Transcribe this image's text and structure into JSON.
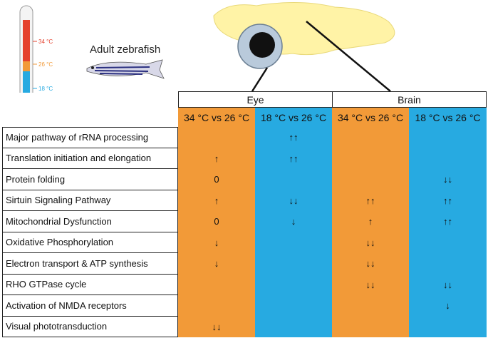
{
  "figure": {
    "caption": "Adult zebrafish",
    "temperatures": [
      "34 °C",
      "26 °C",
      "18 °C"
    ],
    "table": {
      "groups": [
        "Eye",
        "Brain"
      ],
      "columns": [
        "34 °C vs 26 °C",
        "18 °C vs 26 °C",
        "34 °C vs 26 °C",
        "18 °C vs 26 °C"
      ],
      "rows": [
        {
          "label": "Major pathway of rRNA processing",
          "cells": [
            null,
            "↑↑",
            null,
            null
          ]
        },
        {
          "label": "Translation initiation and elongation",
          "cells": [
            "↑",
            "↑↑",
            null,
            null
          ]
        },
        {
          "label": "Protein folding",
          "cells": [
            "0",
            null,
            null,
            "↓↓"
          ]
        },
        {
          "label": "Sirtuin Signaling Pathway",
          "cells": [
            "↑",
            "↓↓",
            "↑↑",
            "↑↑"
          ]
        },
        {
          "label": "Mitochondrial Dysfunction",
          "cells": [
            "0",
            "↓",
            "↑",
            "↑↑"
          ]
        },
        {
          "label": "Oxidative Phosphorylation",
          "cells": [
            "↓",
            null,
            "↓↓",
            null
          ]
        },
        {
          "label": "Electron transport & ATP synthesis",
          "cells": [
            "↓",
            null,
            "↓↓",
            null
          ]
        },
        {
          "label": "RHO GTPase cycle",
          "cells": [
            null,
            null,
            "↓↓",
            "↓↓"
          ]
        },
        {
          "label": "Activation of NMDA receptors",
          "cells": [
            null,
            null,
            null,
            "↓"
          ]
        },
        {
          "label": "Visual phototransduction",
          "cells": [
            "↓↓",
            null,
            null,
            null
          ]
        }
      ]
    }
  }
}
